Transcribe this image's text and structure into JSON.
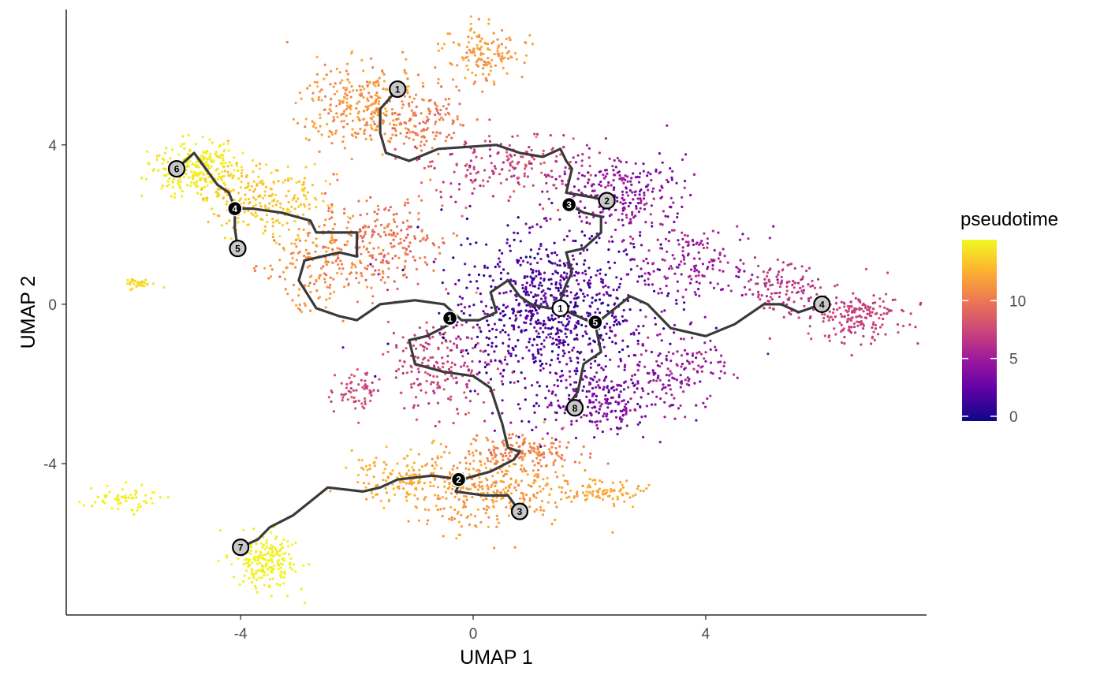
{
  "chart_data": {
    "type": "scatter",
    "xlabel": "UMAP 1",
    "ylabel": "UMAP 2",
    "xlim": [
      -7.0,
      7.8
    ],
    "ylim": [
      -7.8,
      7.4
    ],
    "xticks": [
      -4,
      0,
      4
    ],
    "yticks": [
      -4,
      0,
      4
    ],
    "grid": false,
    "colorbar": {
      "title": "pseudotime",
      "range": [
        0,
        15
      ],
      "ticks": [
        0,
        5,
        10
      ],
      "colors": [
        "#0d0887",
        "#5c01a6",
        "#9c179e",
        "#cc4778",
        "#ed7953",
        "#fdb42f",
        "#f0f921"
      ]
    },
    "clusters": [
      {
        "cx": 1.3,
        "cy": -0.2,
        "rx": 1.6,
        "ry": 1.9,
        "n": 900,
        "t": [
          0.3,
          4.0
        ]
      },
      {
        "cx": 2.6,
        "cy": 2.8,
        "rx": 1.0,
        "ry": 0.9,
        "n": 260,
        "t": [
          3.0,
          6.0
        ]
      },
      {
        "cx": 2.3,
        "cy": -2.4,
        "rx": 1.0,
        "ry": 0.9,
        "n": 240,
        "t": [
          2.5,
          5.5
        ]
      },
      {
        "cx": 3.8,
        "cy": 1.0,
        "rx": 1.0,
        "ry": 1.0,
        "n": 160,
        "t": [
          3.5,
          6.5
        ]
      },
      {
        "cx": 3.6,
        "cy": -1.6,
        "rx": 0.7,
        "ry": 0.8,
        "n": 120,
        "t": [
          3.5,
          6.5
        ]
      },
      {
        "cx": 6.6,
        "cy": -0.3,
        "rx": 0.8,
        "ry": 0.6,
        "n": 190,
        "t": [
          6.5,
          8.0
        ]
      },
      {
        "cx": 5.3,
        "cy": 0.4,
        "rx": 0.6,
        "ry": 0.6,
        "n": 110,
        "t": [
          6.0,
          7.5
        ]
      },
      {
        "cx": 0.6,
        "cy": 3.5,
        "rx": 1.2,
        "ry": 0.8,
        "n": 180,
        "t": [
          5.5,
          9.0
        ]
      },
      {
        "cx": -1.9,
        "cy": 5.0,
        "rx": 1.0,
        "ry": 0.9,
        "n": 300,
        "t": [
          10.0,
          12.5
        ]
      },
      {
        "cx": 0.2,
        "cy": 6.3,
        "rx": 0.6,
        "ry": 0.6,
        "n": 140,
        "t": [
          10.5,
          12.5
        ]
      },
      {
        "cx": -0.8,
        "cy": 4.6,
        "rx": 0.8,
        "ry": 0.8,
        "n": 120,
        "t": [
          9.0,
          11.0
        ]
      },
      {
        "cx": -4.8,
        "cy": 3.4,
        "rx": 0.7,
        "ry": 0.6,
        "n": 260,
        "t": [
          14.0,
          15.0
        ]
      },
      {
        "cx": -3.6,
        "cy": 2.6,
        "rx": 0.9,
        "ry": 0.9,
        "n": 240,
        "t": [
          12.5,
          14.0
        ]
      },
      {
        "cx": -2.7,
        "cy": 1.0,
        "rx": 0.8,
        "ry": 1.0,
        "n": 170,
        "t": [
          10.0,
          12.0
        ]
      },
      {
        "cx": -1.5,
        "cy": 1.6,
        "rx": 1.0,
        "ry": 1.1,
        "n": 230,
        "t": [
          8.5,
          11.0
        ]
      },
      {
        "cx": -0.6,
        "cy": -1.6,
        "rx": 0.8,
        "ry": 1.0,
        "n": 200,
        "t": [
          6.0,
          8.5
        ]
      },
      {
        "cx": -2.0,
        "cy": -2.2,
        "rx": 0.4,
        "ry": 0.5,
        "n": 60,
        "t": [
          6.5,
          8.5
        ]
      },
      {
        "cx": 0.3,
        "cy": -4.6,
        "rx": 1.2,
        "ry": 0.9,
        "n": 340,
        "t": [
          10.5,
          12.5
        ]
      },
      {
        "cx": -1.2,
        "cy": -4.4,
        "rx": 0.8,
        "ry": 0.6,
        "n": 140,
        "t": [
          11.5,
          13.0
        ]
      },
      {
        "cx": 0.9,
        "cy": -3.7,
        "rx": 0.9,
        "ry": 0.4,
        "n": 140,
        "t": [
          9.5,
          11.5
        ]
      },
      {
        "cx": 2.1,
        "cy": -4.7,
        "rx": 0.8,
        "ry": 0.25,
        "n": 90,
        "t": [
          11.5,
          12.5
        ]
      },
      {
        "cx": -3.6,
        "cy": -6.5,
        "rx": 0.5,
        "ry": 0.6,
        "n": 200,
        "t": [
          14.5,
          15.0
        ]
      },
      {
        "cx": -6.0,
        "cy": -4.9,
        "rx": 0.5,
        "ry": 0.3,
        "n": 60,
        "t": [
          14.5,
          15.0
        ]
      },
      {
        "cx": -5.7,
        "cy": 0.5,
        "rx": 0.3,
        "ry": 0.12,
        "n": 35,
        "t": [
          13.5,
          14.3
        ]
      }
    ],
    "trajectory": [
      [
        [
          -1.3,
          5.4
        ],
        [
          -1.6,
          4.9
        ],
        [
          -1.6,
          4.3
        ],
        [
          -1.5,
          3.8
        ],
        [
          -1.1,
          3.6
        ],
        [
          -0.6,
          3.9
        ],
        [
          0.4,
          4.0
        ],
        [
          0.8,
          3.8
        ],
        [
          1.2,
          3.7
        ],
        [
          1.5,
          3.9
        ],
        [
          1.6,
          3.6
        ],
        [
          1.7,
          3.4
        ],
        [
          1.6,
          2.8
        ],
        [
          2.0,
          2.7
        ],
        [
          2.3,
          2.6
        ]
      ],
      [
        [
          1.65,
          2.5
        ],
        [
          1.9,
          2.3
        ],
        [
          2.2,
          2.2
        ],
        [
          2.2,
          1.8
        ],
        [
          1.9,
          1.4
        ],
        [
          1.6,
          1.3
        ],
        [
          1.7,
          0.8
        ],
        [
          1.6,
          0.5
        ],
        [
          1.5,
          0.1
        ],
        [
          1.5,
          -0.1
        ]
      ],
      [
        [
          1.5,
          -0.1
        ],
        [
          1.3,
          -0.1
        ],
        [
          1.0,
          0.0
        ],
        [
          0.8,
          0.2
        ],
        [
          0.6,
          0.6
        ],
        [
          0.3,
          0.3
        ],
        [
          0.4,
          -0.2
        ],
        [
          0.1,
          -0.4
        ],
        [
          -0.2,
          -0.4
        ],
        [
          -0.5,
          0.0
        ],
        [
          -1.0,
          0.1
        ],
        [
          -1.6,
          0.0
        ],
        [
          -2.0,
          -0.4
        ],
        [
          -2.3,
          -0.3
        ],
        [
          -2.7,
          -0.1
        ],
        [
          -3.0,
          0.6
        ],
        [
          -2.9,
          1.1
        ],
        [
          -2.3,
          1.3
        ],
        [
          -2.0,
          1.2
        ],
        [
          -2.0,
          1.8
        ],
        [
          -2.7,
          1.8
        ],
        [
          -2.8,
          2.1
        ],
        [
          -3.3,
          2.3
        ],
        [
          -3.8,
          2.4
        ],
        [
          -4.1,
          2.4
        ]
      ],
      [
        [
          -4.1,
          2.4
        ],
        [
          -4.2,
          2.8
        ],
        [
          -4.4,
          3.0
        ],
        [
          -4.6,
          3.4
        ],
        [
          -4.8,
          3.8
        ],
        [
          -5.1,
          3.4
        ]
      ],
      [
        [
          -4.1,
          2.4
        ],
        [
          -4.1,
          1.9
        ],
        [
          -4.05,
          1.4
        ]
      ],
      [
        [
          1.5,
          -0.1
        ],
        [
          1.8,
          -0.3
        ],
        [
          2.1,
          -0.5
        ],
        [
          2.7,
          0.2
        ],
        [
          3.0,
          0.0
        ],
        [
          3.4,
          -0.6
        ],
        [
          4.0,
          -0.8
        ],
        [
          4.5,
          -0.5
        ],
        [
          5.0,
          0.0
        ],
        [
          5.3,
          0.0
        ],
        [
          5.6,
          -0.2
        ],
        [
          6.0,
          0.0
        ]
      ],
      [
        [
          2.1,
          -0.5
        ],
        [
          2.2,
          -1.2
        ],
        [
          1.9,
          -1.5
        ],
        [
          1.8,
          -2.2
        ],
        [
          1.6,
          -2.6
        ],
        [
          1.75,
          -2.6
        ]
      ],
      [
        [
          -0.4,
          -0.5
        ],
        [
          -0.8,
          -0.8
        ],
        [
          -1.1,
          -0.9
        ],
        [
          -1.0,
          -1.5
        ],
        [
          -0.5,
          -1.7
        ],
        [
          0.0,
          -1.8
        ],
        [
          0.3,
          -2.1
        ],
        [
          0.5,
          -3.0
        ],
        [
          0.6,
          -3.6
        ],
        [
          0.8,
          -3.7
        ],
        [
          0.7,
          -3.9
        ],
        [
          0.3,
          -4.2
        ],
        [
          -0.2,
          -4.4
        ],
        [
          -0.7,
          -4.3
        ],
        [
          -1.3,
          -4.4
        ],
        [
          -1.6,
          -4.6
        ],
        [
          -1.9,
          -4.7
        ],
        [
          -2.5,
          -4.6
        ],
        [
          -3.1,
          -5.3
        ],
        [
          -3.5,
          -5.6
        ],
        [
          -3.7,
          -5.9
        ],
        [
          -4.0,
          -6.1
        ]
      ],
      [
        [
          -0.2,
          -4.4
        ],
        [
          -0.3,
          -4.7
        ],
        [
          0.2,
          -4.8
        ],
        [
          0.6,
          -4.8
        ],
        [
          0.8,
          -5.2
        ]
      ]
    ],
    "nodes": [
      {
        "label": "1",
        "x": -1.3,
        "y": 5.4,
        "style": "leaf"
      },
      {
        "label": "2",
        "x": 2.3,
        "y": 2.6,
        "style": "leaf"
      },
      {
        "label": "3",
        "x": 0.8,
        "y": -5.2,
        "style": "leaf"
      },
      {
        "label": "4",
        "x": 6.0,
        "y": 0.0,
        "style": "leaf"
      },
      {
        "label": "5",
        "x": -4.05,
        "y": 1.4,
        "style": "leaf"
      },
      {
        "label": "6",
        "x": -5.1,
        "y": 3.4,
        "style": "leaf"
      },
      {
        "label": "7",
        "x": -4.0,
        "y": -6.1,
        "style": "leaf"
      },
      {
        "label": "8",
        "x": 1.75,
        "y": -2.6,
        "style": "leaf"
      },
      {
        "label": "1",
        "x": 1.5,
        "y": -0.1,
        "style": "root"
      },
      {
        "label": "1",
        "x": -0.4,
        "y": -0.35,
        "style": "branch"
      },
      {
        "label": "2",
        "x": -0.25,
        "y": -4.4,
        "style": "branch"
      },
      {
        "label": "3",
        "x": 1.65,
        "y": 2.5,
        "style": "branch"
      },
      {
        "label": "4",
        "x": -4.1,
        "y": 2.4,
        "style": "branch"
      },
      {
        "label": "5",
        "x": 2.1,
        "y": -0.45,
        "style": "branch"
      }
    ]
  }
}
